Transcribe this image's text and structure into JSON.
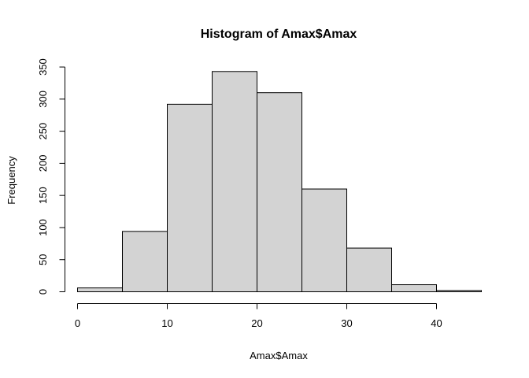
{
  "chart_data": {
    "type": "bar",
    "title": "Histogram of Amax$Amax",
    "xlabel": "Amax$Amax",
    "ylabel": "Frequency",
    "bins": [
      {
        "start": 0,
        "end": 5,
        "count": 6
      },
      {
        "start": 5,
        "end": 10,
        "count": 94
      },
      {
        "start": 10,
        "end": 15,
        "count": 292
      },
      {
        "start": 15,
        "end": 20,
        "count": 343
      },
      {
        "start": 20,
        "end": 25,
        "count": 310
      },
      {
        "start": 25,
        "end": 30,
        "count": 160
      },
      {
        "start": 30,
        "end": 35,
        "count": 68
      },
      {
        "start": 35,
        "end": 40,
        "count": 11
      },
      {
        "start": 40,
        "end": 45,
        "count": 2
      }
    ],
    "x_ticks": [
      0,
      10,
      20,
      30,
      40
    ],
    "y_ticks": [
      0,
      50,
      100,
      150,
      200,
      250,
      300,
      350
    ],
    "xlim": [
      0,
      45
    ],
    "ylim": [
      0,
      350
    ],
    "bar_fill": "#d3d3d3",
    "bar_stroke": "#000000",
    "grid": false,
    "legend": "none"
  }
}
